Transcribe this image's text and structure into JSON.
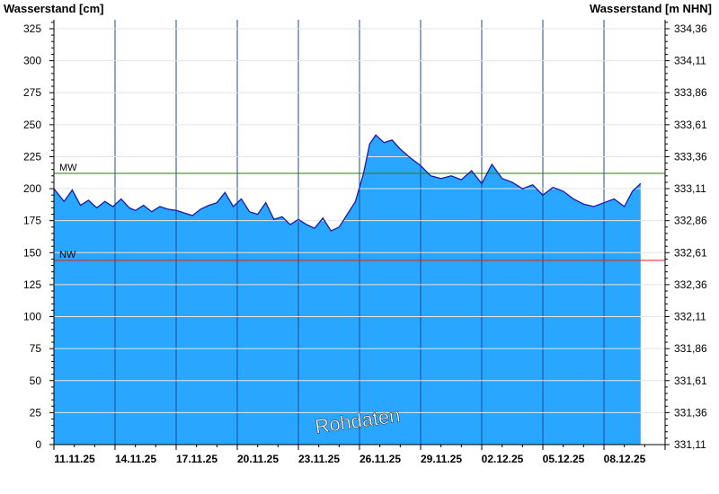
{
  "chart_data": {
    "type": "area",
    "y_left_label": "Wasserstand [cm]",
    "y_right_label": "Wasserstand [m NHN]",
    "watermark": "Rohdaten",
    "ylim": [
      0,
      332
    ],
    "y_ticks": [
      0,
      25,
      50,
      75,
      100,
      125,
      150,
      175,
      200,
      225,
      250,
      275,
      300,
      325
    ],
    "y_right_ticks": [
      "331,11",
      "331,36",
      "331,61",
      "331,86",
      "332,11",
      "332,36",
      "332,61",
      "332,86",
      "333,11",
      "333,36",
      "333,61",
      "333,86",
      "334,11",
      "334,36"
    ],
    "x_ticks": [
      "11.11.25",
      "14.11.25",
      "17.11.25",
      "20.11.25",
      "23.11.25",
      "26.11.25",
      "29.11.25",
      "02.12.25",
      "05.12.25",
      "08.12.25"
    ],
    "x_range_days": [
      0,
      30
    ],
    "reference_lines": [
      {
        "label": "MW",
        "value": 212,
        "color": "#2e7d12"
      },
      {
        "label": "NW",
        "value": 144,
        "color": "#d62020"
      }
    ],
    "fill_color": "#29a6ff",
    "line_color": "#1a1aa8",
    "series": [
      {
        "x_days": [
          0,
          0.5,
          0.9,
          1.3,
          1.7,
          2.1,
          2.5,
          2.9,
          3.3,
          3.7,
          4.0,
          4.4,
          4.8,
          5.2,
          5.6,
          6.0,
          6.4,
          6.8,
          7.2,
          7.6,
          8.0,
          8.4,
          8.8,
          9.2,
          9.6,
          10.0,
          10.4,
          10.8,
          11.2,
          11.6,
          12.0,
          12.4,
          12.8,
          13.2,
          13.6,
          14.0,
          14.4,
          14.8,
          15.2,
          15.5,
          15.8,
          16.2,
          16.6,
          17.0,
          17.5,
          18.0,
          18.5,
          19.0,
          19.5,
          20.0,
          20.5,
          21.0,
          21.5,
          22.0,
          22.5,
          23.0,
          23.5,
          24.0,
          24.5,
          25.0,
          25.5,
          26.0,
          26.5,
          27.0,
          27.5,
          28.0,
          28.4,
          28.8
        ],
        "values": [
          200,
          190,
          199,
          187,
          191,
          185,
          190,
          186,
          192,
          185,
          183,
          187,
          182,
          186,
          184,
          183,
          181,
          179,
          184,
          187,
          189,
          197,
          186,
          192,
          182,
          180,
          189,
          176,
          178,
          172,
          176,
          172,
          169,
          177,
          167,
          170,
          180,
          190,
          212,
          235,
          242,
          236,
          238,
          231,
          224,
          218,
          210,
          208,
          210,
          207,
          214,
          204,
          219,
          208,
          205,
          200,
          203,
          195,
          201,
          198,
          192,
          188,
          186,
          189,
          192,
          186,
          198,
          204
        ]
      }
    ]
  }
}
